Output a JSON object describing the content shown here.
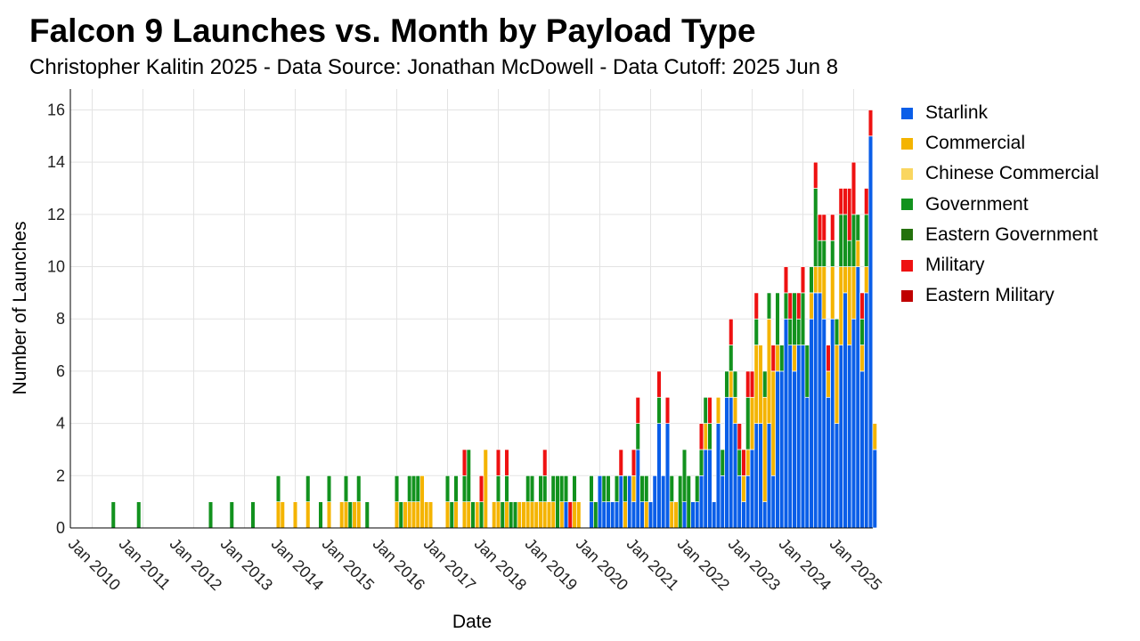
{
  "title": "Falcon 9 Launches vs. Month by Payload Type",
  "subtitle": "Christopher Kalitin 2025 - Data Source: Jonathan McDowell - Data Cutoff: 2025 Jun 8",
  "chart_data": {
    "type": "bar",
    "stacked": true,
    "xlabel": "Date",
    "ylabel": "Number of Launches",
    "ylim": [
      0,
      16.8
    ],
    "yticks": [
      0,
      2,
      4,
      6,
      8,
      10,
      12,
      14,
      16
    ],
    "xticks": [
      "Jan 2010",
      "Jan 2011",
      "Jan 2012",
      "Jan 2013",
      "Jan 2014",
      "Jan 2015",
      "Jan 2016",
      "Jan 2017",
      "Jan 2018",
      "Jan 2019",
      "Jan 2020",
      "Jan 2021",
      "Jan 2022",
      "Jan 2023",
      "Jan 2024",
      "Jan 2025"
    ],
    "grid": true,
    "legend_position": "right",
    "series": [
      {
        "name": "Starlink",
        "color": "#0a5ee8",
        "data": {
          "2019-05": 1,
          "2019-11": 1,
          "2020-01": 2,
          "2020-02": 1,
          "2020-03": 1,
          "2020-04": 1,
          "2020-05": 1,
          "2020-06": 2,
          "2020-08": 2,
          "2020-09": 1,
          "2020-10": 3,
          "2020-11": 1,
          "2021-01": 1,
          "2021-02": 2,
          "2021-03": 4,
          "2021-04": 2,
          "2021-05": 4,
          "2021-09": 1,
          "2021-11": 1,
          "2021-12": 1,
          "2022-01": 2,
          "2022-02": 3,
          "2022-03": 3,
          "2022-04": 1,
          "2022-05": 4,
          "2022-06": 2,
          "2022-07": 5,
          "2022-08": 5,
          "2022-09": 4,
          "2022-10": 2,
          "2022-11": 1,
          "2022-12": 2,
          "2023-01": 3,
          "2023-02": 4,
          "2023-03": 4,
          "2023-04": 1,
          "2023-05": 4,
          "2023-06": 2,
          "2023-07": 6,
          "2023-08": 6,
          "2023-09": 8,
          "2023-10": 7,
          "2023-11": 6,
          "2023-12": 7,
          "2024-01": 7,
          "2024-02": 5,
          "2024-03": 8,
          "2024-04": 9,
          "2024-05": 9,
          "2024-06": 8,
          "2024-07": 5,
          "2024-08": 8,
          "2024-09": 4,
          "2024-10": 7,
          "2024-11": 9,
          "2024-12": 7,
          "2025-01": 8,
          "2025-02": 10,
          "2025-03": 6,
          "2025-04": 9,
          "2025-05": 15,
          "2025-06": 3
        }
      },
      {
        "name": "Commercial",
        "color": "#f4b400",
        "data": {
          "2013-09": 1,
          "2013-10": 1,
          "2014-01": 1,
          "2014-04": 1,
          "2014-09": 1,
          "2014-12": 1,
          "2015-01": 1,
          "2015-03": 1,
          "2015-04": 1,
          "2016-01": 1,
          "2016-03": 1,
          "2016-04": 1,
          "2016-05": 1,
          "2016-06": 1,
          "2016-07": 2,
          "2016-08": 1,
          "2016-09": 1,
          "2017-01": 1,
          "2017-03": 1,
          "2017-05": 1,
          "2017-06": 1,
          "2017-08": 1,
          "2017-10": 3,
          "2017-12": 1,
          "2018-01": 1,
          "2018-03": 1,
          "2018-06": 1,
          "2018-07": 1,
          "2018-08": 1,
          "2018-09": 1,
          "2018-10": 1,
          "2018-11": 1,
          "2018-12": 1,
          "2019-01": 1,
          "2019-02": 1,
          "2019-04": 1,
          "2019-07": 1,
          "2019-08": 1,
          "2020-07": 1,
          "2020-09": 1,
          "2020-12": 1,
          "2021-06": 1,
          "2021-07": 1,
          "2022-02": 1,
          "2022-05": 1,
          "2022-08": 1,
          "2022-09": 1,
          "2022-11": 1,
          "2022-12": 1,
          "2023-01": 2,
          "2023-02": 3,
          "2023-03": 3,
          "2023-04": 4,
          "2023-05": 4,
          "2023-06": 4,
          "2023-07": 1,
          "2023-11": 1,
          "2024-03": 1,
          "2024-04": 1,
          "2024-05": 1,
          "2024-06": 2,
          "2024-07": 1,
          "2024-08": 2,
          "2024-09": 3,
          "2024-10": 3,
          "2024-11": 1,
          "2024-12": 3,
          "2025-01": 2,
          "2025-02": 1,
          "2025-03": 1,
          "2025-04": 1,
          "2025-06": 1
        }
      },
      {
        "name": "Chinese Commercial",
        "color": "#fad660",
        "data": {}
      },
      {
        "name": "Government",
        "color": "#12921e",
        "data": {
          "2010-06": 1,
          "2010-12": 1,
          "2012-05": 1,
          "2012-10": 1,
          "2013-03": 1,
          "2013-09": 1,
          "2014-04": 1,
          "2014-07": 1,
          "2014-09": 1,
          "2015-01": 1,
          "2015-02": 1,
          "2015-04": 1,
          "2015-06": 1,
          "2016-01": 1,
          "2016-02": 1,
          "2016-04": 1,
          "2016-05": 1,
          "2016-06": 1,
          "2017-01": 1,
          "2017-02": 1,
          "2017-03": 1,
          "2017-05": 1,
          "2017-06": 2,
          "2017-07": 1,
          "2017-09": 1,
          "2018-01": 1,
          "2018-02": 1,
          "2018-03": 1,
          "2018-04": 1,
          "2018-05": 1,
          "2018-08": 1,
          "2018-09": 1,
          "2018-11": 1,
          "2018-12": 1,
          "2019-02": 1,
          "2019-03": 2,
          "2019-04": 1,
          "2019-05": 1,
          "2019-07": 1,
          "2019-11": 1,
          "2019-12": 1,
          "2020-02": 1,
          "2020-03": 1,
          "2020-05": 1,
          "2020-07": 1,
          "2020-10": 1,
          "2020-11": 1,
          "2020-12": 1,
          "2021-03": 1,
          "2021-06": 1,
          "2021-08": 2,
          "2021-09": 2,
          "2021-10": 2,
          "2021-12": 1,
          "2022-01": 1,
          "2022-02": 1,
          "2022-03": 1,
          "2022-06": 1,
          "2022-07": 1,
          "2022-08": 1,
          "2022-09": 1,
          "2022-10": 1,
          "2022-12": 2,
          "2023-02": 1,
          "2023-04": 1,
          "2023-05": 1,
          "2023-07": 2,
          "2023-08": 1,
          "2023-09": 1,
          "2023-10": 1,
          "2023-11": 2,
          "2023-12": 1,
          "2024-01": 2,
          "2024-02": 2,
          "2024-03": 1,
          "2024-04": 3,
          "2024-05": 1,
          "2024-06": 1,
          "2024-08": 1,
          "2024-09": 1,
          "2024-10": 2,
          "2024-11": 2,
          "2024-12": 1,
          "2025-01": 2,
          "2025-02": 1,
          "2025-03": 1,
          "2025-04": 2
        }
      },
      {
        "name": "Eastern Government",
        "color": "#24710d",
        "data": {}
      },
      {
        "name": "Military",
        "color": "#ee1111",
        "data": {
          "2017-05": 1,
          "2017-09": 1,
          "2018-01": 1,
          "2018-03": 1,
          "2018-12": 1,
          "2019-06": 1,
          "2020-06": 1,
          "2020-09": 1,
          "2020-10": 1,
          "2021-03": 1,
          "2021-05": 1,
          "2022-01": 1,
          "2022-03": 1,
          "2022-08": 1,
          "2022-10": 1,
          "2022-11": 1,
          "2022-12": 1,
          "2023-01": 1,
          "2023-02": 1,
          "2023-06": 1,
          "2023-09": 1,
          "2023-10": 1,
          "2023-12": 1,
          "2024-01": 1,
          "2024-04": 1,
          "2024-05": 1,
          "2024-06": 1,
          "2024-07": 1,
          "2024-08": 1,
          "2024-10": 1,
          "2024-11": 1,
          "2024-12": 2,
          "2025-01": 2,
          "2025-03": 1,
          "2025-04": 1,
          "2025-05": 1
        }
      },
      {
        "name": "Eastern Military",
        "color": "#c00000",
        "data": {}
      }
    ]
  }
}
